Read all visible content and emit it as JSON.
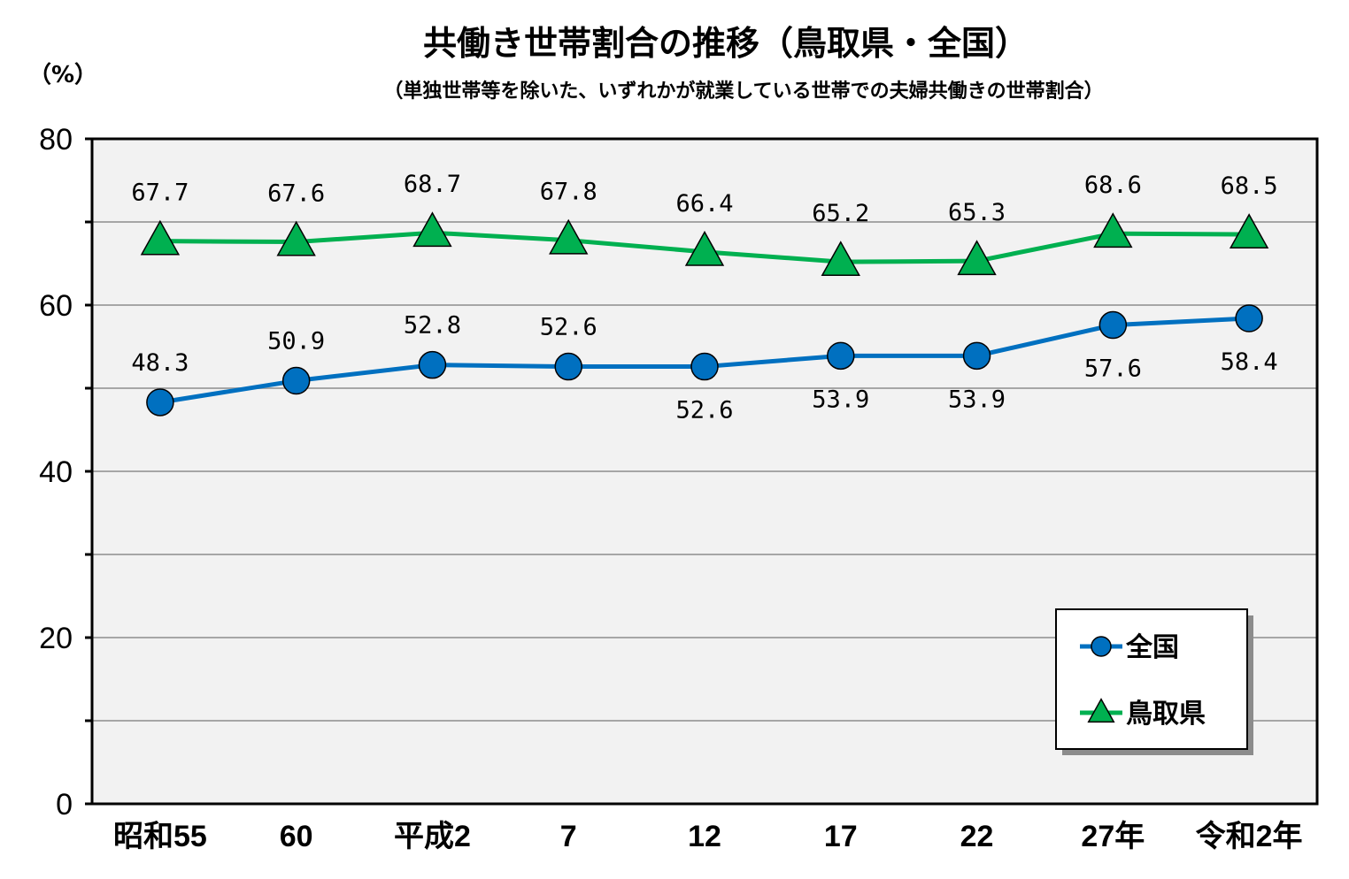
{
  "chart_data": {
    "type": "line",
    "title": "共働き世帯割合の推移（鳥取県・全国）",
    "subtitle": "（単独世帯等を除いた、いずれかが就業している世帯での夫婦共働きの世帯割合）",
    "ylabel": "（%）",
    "xlabel": "",
    "ylim": [
      0,
      80
    ],
    "yticks": [
      0,
      20,
      40,
      60,
      80
    ],
    "grid": true,
    "legend_position": "bottom-right",
    "categories": [
      "昭和55",
      "60",
      "平成2",
      "7",
      "12",
      "17",
      "22",
      "27年",
      "令和2年"
    ],
    "series": [
      {
        "name": "全国",
        "values": [
          48.3,
          50.9,
          52.8,
          52.6,
          52.6,
          53.9,
          53.9,
          57.6,
          58.4
        ],
        "labels": [
          "48.3",
          "50.9",
          "52.8",
          "52.6",
          "52.6",
          "53.9",
          "53.9",
          "57.6",
          "58.4"
        ],
        "label_side": [
          "above",
          "above",
          "above",
          "above",
          "below",
          "below",
          "below",
          "below",
          "below"
        ],
        "marker": "circle",
        "color": "#0070C0"
      },
      {
        "name": "鳥取県",
        "values": [
          67.7,
          67.6,
          68.7,
          67.8,
          66.4,
          65.2,
          65.3,
          68.6,
          68.5
        ],
        "labels": [
          "67.7",
          "67.6",
          "68.7",
          "67.8",
          "66.4",
          "65.2",
          "65.3",
          "68.6",
          "68.5"
        ],
        "label_side": [
          "above",
          "above",
          "above",
          "above",
          "above",
          "above",
          "above",
          "above",
          "above"
        ],
        "marker": "triangle",
        "color": "#00B050"
      }
    ]
  },
  "colors": {
    "plot_background": "#F2F2F2",
    "grid": "#A6A6A6",
    "axis": "#000000"
  }
}
